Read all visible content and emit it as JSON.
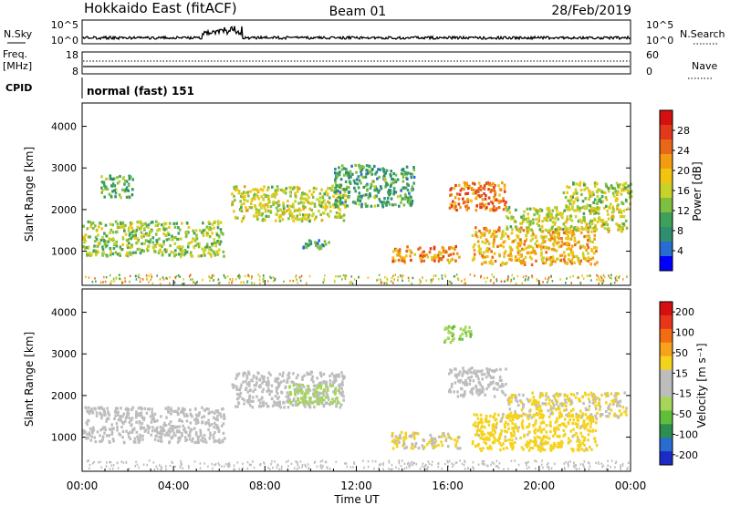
{
  "header": {
    "station": "Hokkaido East (fitACF)",
    "beam": "Beam 01",
    "date": "28/Feb/2019"
  },
  "ts_panels": {
    "nsky": {
      "left_label": "N.Sky",
      "left_ticks": [
        "10^5",
        "10^0"
      ],
      "right_label": "N.Search",
      "right_ticks": [
        "10^5",
        "10^0"
      ]
    },
    "freq": {
      "left_label_1": "Freq.",
      "left_label_2": "[MHz]",
      "left_ticks": [
        "18",
        "8"
      ],
      "right_label": "Nave",
      "right_ticks": [
        "60",
        "0"
      ]
    },
    "cpid": {
      "left_label": "CPID",
      "mode_text": "normal (fast) 151"
    }
  },
  "colors": {
    "power_scale": [
      "#0000ff",
      "#2a6bd0",
      "#2d8f6f",
      "#3ea15a",
      "#7fbf3f",
      "#c7d22a",
      "#f1c40f",
      "#f39c12",
      "#e8671a",
      "#e03a1a",
      "#d41010"
    ],
    "velocity_scale": [
      "#d41010",
      "#e8361a",
      "#f26c12",
      "#f7a21a",
      "#f5d21c",
      "#bdbdbd",
      "#bdbdbd",
      "#a5d65a",
      "#5fbf3a",
      "#2d8f4f",
      "#2a6bd0",
      "#1c2bc4"
    ]
  },
  "chart_data": [
    {
      "type": "heatmap",
      "panel": "power",
      "ylabel": "Slant Range [km]",
      "xlabel": "",
      "ylim": [
        180,
        4560
      ],
      "y_ticks": [
        "1000",
        "2000",
        "3000",
        "4000"
      ],
      "x_ticks": [
        "00:00",
        "04:00",
        "08:00",
        "12:00",
        "16:00",
        "20:00",
        "00:00"
      ],
      "colorbar_label": "Power [dB]",
      "colorbar_ticks": [
        "4",
        "8",
        "12",
        "16",
        "20",
        "24",
        "28"
      ],
      "colorbar_range": [
        0,
        32
      ],
      "regions": [
        {
          "t0": 0.0,
          "t1": 6.2,
          "r0": 900,
          "r1": 1750,
          "v": 14
        },
        {
          "t0": 0.8,
          "t1": 2.2,
          "r0": 2300,
          "r1": 2850,
          "v": 11
        },
        {
          "t0": 6.5,
          "t1": 11.5,
          "r0": 1750,
          "r1": 2600,
          "v": 16
        },
        {
          "t0": 9.5,
          "t1": 10.8,
          "r0": 1050,
          "r1": 1300,
          "v": 9
        },
        {
          "t0": 13.5,
          "t1": 16.5,
          "r0": 750,
          "r1": 1150,
          "v": 22
        },
        {
          "t0": 16.0,
          "t1": 18.5,
          "r0": 2000,
          "r1": 2700,
          "v": 24
        },
        {
          "t0": 17.0,
          "t1": 22.5,
          "r0": 700,
          "r1": 1600,
          "v": 20
        },
        {
          "t0": 18.5,
          "t1": 23.8,
          "r0": 1500,
          "r1": 2100,
          "v": 16
        },
        {
          "t0": 11.0,
          "t1": 14.5,
          "r0": 2100,
          "r1": 3100,
          "v": 10
        },
        {
          "t0": 21.0,
          "t1": 24.0,
          "r0": 2000,
          "r1": 2700,
          "v": 15
        }
      ]
    },
    {
      "type": "heatmap",
      "panel": "velocity",
      "ylabel": "Slant Range [km]",
      "xlabel": "Time UT",
      "ylim": [
        180,
        4560
      ],
      "y_ticks": [
        "1000",
        "2000",
        "3000",
        "4000"
      ],
      "x_ticks": [
        "00:00",
        "04:00",
        "08:00",
        "12:00",
        "16:00",
        "20:00",
        "00:00"
      ],
      "colorbar_label": "Velocity [m s⁻¹]",
      "colorbar_ticks": [
        "200",
        "100",
        "50",
        "15",
        "-15",
        "-50",
        "-100",
        "-200"
      ],
      "colorbar_range": [
        -250,
        250
      ],
      "regions": [
        {
          "t0": 0.0,
          "t1": 6.2,
          "r0": 900,
          "r1": 1750,
          "v": 0
        },
        {
          "t0": 6.5,
          "t1": 11.5,
          "r0": 1750,
          "r1": 2600,
          "v": 5
        },
        {
          "t0": 9.0,
          "t1": 11.2,
          "r0": 1800,
          "r1": 2300,
          "v": -60
        },
        {
          "t0": 13.5,
          "t1": 16.5,
          "r0": 750,
          "r1": 1150,
          "v": 40
        },
        {
          "t0": 16.0,
          "t1": 18.5,
          "r0": 2000,
          "r1": 2700,
          "v": 0
        },
        {
          "t0": 18.5,
          "t1": 23.8,
          "r0": 1500,
          "r1": 2100,
          "v": 45
        },
        {
          "t0": 17.0,
          "t1": 22.5,
          "r0": 700,
          "r1": 1600,
          "v": 60
        },
        {
          "t0": 15.8,
          "t1": 17.0,
          "r0": 3300,
          "r1": 3700,
          "v": -80
        }
      ]
    }
  ]
}
